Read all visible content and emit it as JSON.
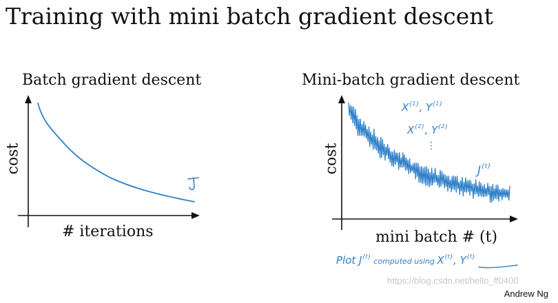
{
  "slide": {
    "title": "Training with mini batch gradient descent",
    "footer": "Andrew Ng",
    "watermark": "https://blog.csdn.net/hello_ff0400"
  },
  "left_panel": {
    "title": "Batch gradient descent",
    "ylabel": "cost",
    "xlabel": "# iterations",
    "curve_label": "J"
  },
  "right_panel": {
    "title": "Mini-batch gradient descent",
    "ylabel": "cost",
    "xlabel": "mini batch # (t)",
    "notes": [
      "X{1}, Y{1}",
      "X{2}, Y{2}",
      "⋮",
      "J{t}"
    ],
    "plot_note": "Plot J{t} computed using X{t}, Y{t}"
  },
  "colors": {
    "ink": "#111111",
    "handwriting": "#2f80c8"
  }
}
